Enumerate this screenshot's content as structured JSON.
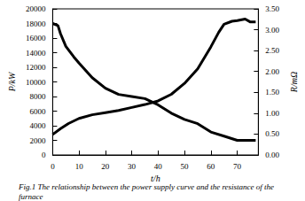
{
  "chart_data": {
    "type": "line",
    "title": "Fig.1 The relationship between the power supply curve and the resistance of the furnace",
    "x_label": "t/h",
    "y_label": "P/kW",
    "y2_label": "R/mΩ",
    "xlim": [
      0,
      78
    ],
    "xticks": [
      0,
      10,
      20,
      30,
      40,
      50,
      60,
      70
    ],
    "ylim": [
      0,
      20000
    ],
    "yticks": [
      0,
      2000,
      4000,
      6000,
      8000,
      10000,
      12000,
      14000,
      16000,
      18000,
      20000
    ],
    "y2lim": [
      0,
      3.5
    ],
    "y2ticks": [
      {
        "value": 0,
        "label": "0.00"
      },
      {
        "value": 0.5,
        "label": "0.50"
      },
      {
        "value": 1,
        "label": "1.00"
      },
      {
        "value": 1.5,
        "label": "1.50"
      },
      {
        "value": 2,
        "label": "2.00"
      },
      {
        "value": 2.5,
        "label": "2.50"
      },
      {
        "value": 3,
        "label": "3.00"
      },
      {
        "value": 3.5,
        "label": "3.50"
      }
    ],
    "grid": false,
    "series": [
      {
        "color": "#000000",
        "x": [
          0,
          3,
          6,
          10,
          15,
          20,
          25,
          30,
          35,
          40,
          45,
          50,
          55,
          60,
          63,
          65,
          68,
          70,
          73,
          75,
          77
        ],
        "values": [
          2800,
          3600,
          4300,
          5000,
          5500,
          5800,
          6100,
          6500,
          6900,
          7400,
          8300,
          9800,
          11800,
          14800,
          16800,
          17900,
          18300,
          18400,
          18600,
          18200,
          18200
        ]
      },
      {
        "color": "#000000",
        "axis": "y2",
        "x": [
          0,
          2,
          3,
          5,
          8,
          10,
          15,
          20,
          25,
          30,
          35,
          40,
          45,
          50,
          55,
          60,
          65,
          70,
          74,
          77
        ],
        "values": [
          3.15,
          3.1,
          2.9,
          2.6,
          2.35,
          2.2,
          1.85,
          1.6,
          1.45,
          1.4,
          1.35,
          1.2,
          1.0,
          0.85,
          0.75,
          0.55,
          0.45,
          0.35,
          0.35,
          0.35
        ]
      }
    ]
  }
}
